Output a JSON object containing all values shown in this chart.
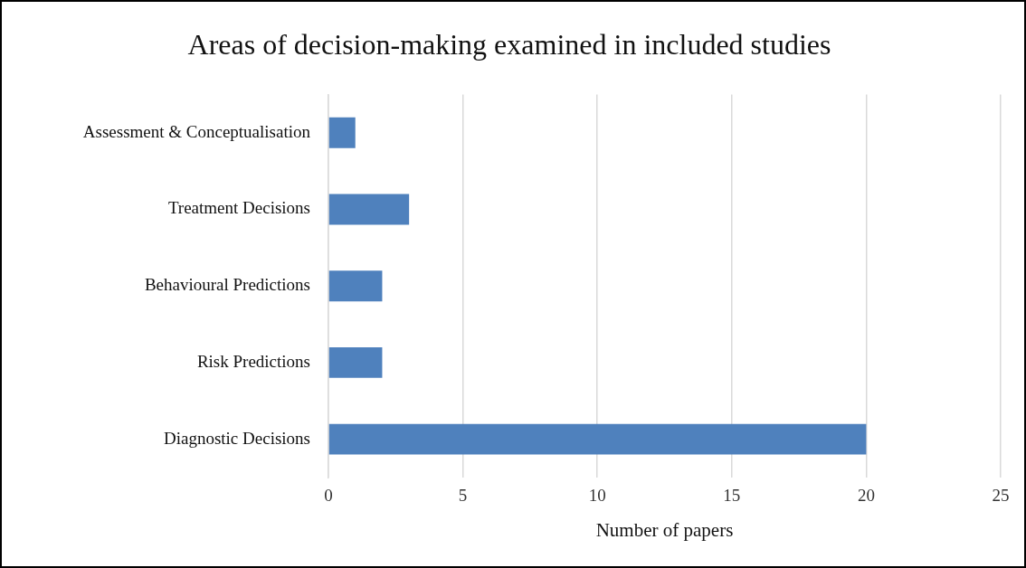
{
  "chart_data": {
    "type": "bar",
    "orientation": "horizontal",
    "title": "Areas of decision-making examined in included studies",
    "categories": [
      "Assessment & Conceptualisation",
      "Treatment Decisions",
      "Behavioural Predictions",
      "Risk Predictions",
      "Diagnostic Decisions"
    ],
    "values": [
      1,
      3,
      2,
      2,
      20
    ],
    "color": "#4f81bd",
    "xlabel": "Number of papers",
    "xlim": [
      0,
      25
    ],
    "xticks": [
      0,
      5,
      10,
      15,
      20,
      25
    ],
    "grid": "x",
    "legend": false
  }
}
